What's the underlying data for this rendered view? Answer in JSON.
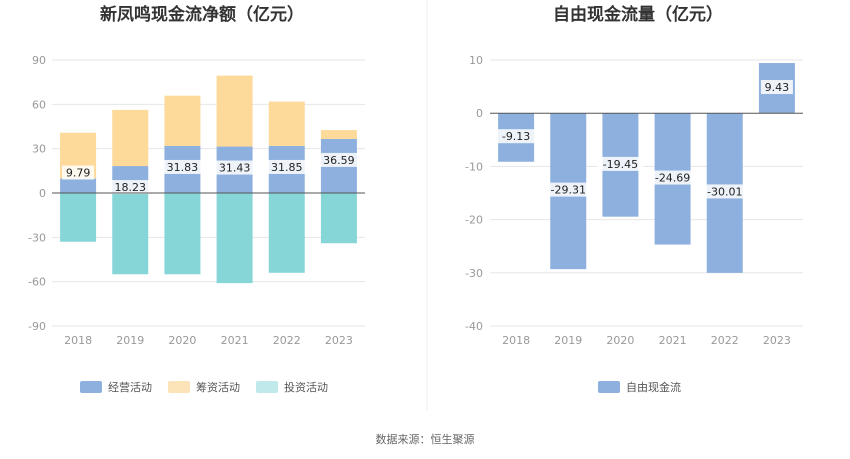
{
  "chart_data": [
    {
      "type": "bar",
      "stacked": true,
      "title": "新凤鸣现金流净额（亿元）",
      "categories": [
        "2018",
        "2019",
        "2020",
        "2021",
        "2022",
        "2023"
      ],
      "ylim": [
        -90,
        90
      ],
      "yticks": [
        90,
        60,
        30,
        0,
        -30,
        -60,
        -90
      ],
      "grid": true,
      "legend_position": "bottom",
      "series": [
        {
          "name": "经营活动",
          "color": "#8eb0de",
          "values": [
            9.79,
            18.23,
            31.83,
            31.43,
            31.85,
            36.59
          ],
          "labeled": true
        },
        {
          "name": "筹资活动",
          "color": "#fdd99a",
          "values": [
            31,
            38,
            34,
            48,
            30,
            6
          ],
          "labeled": false
        },
        {
          "name": "投资活动",
          "color": "#86d6d8",
          "values": [
            -33,
            -55,
            -55,
            -61,
            -54,
            -34
          ],
          "labeled": false
        }
      ],
      "legend_colors": [
        "#8eb0de",
        "#fde3b8",
        "#bfe9ea"
      ]
    },
    {
      "type": "bar",
      "title": "自由现金流量（亿元）",
      "categories": [
        "2018",
        "2019",
        "2020",
        "2021",
        "2022",
        "2023"
      ],
      "ylim": [
        -40,
        10
      ],
      "yticks": [
        10,
        0,
        -10,
        -20,
        -30,
        -40
      ],
      "grid": true,
      "legend_position": "bottom",
      "series": [
        {
          "name": "自由现金流",
          "color": "#8eb0de",
          "values": [
            -9.13,
            -29.31,
            -19.45,
            -24.69,
            -30.01,
            9.43
          ],
          "labeled": true
        }
      ]
    }
  ],
  "source": "数据来源：恒生聚源"
}
